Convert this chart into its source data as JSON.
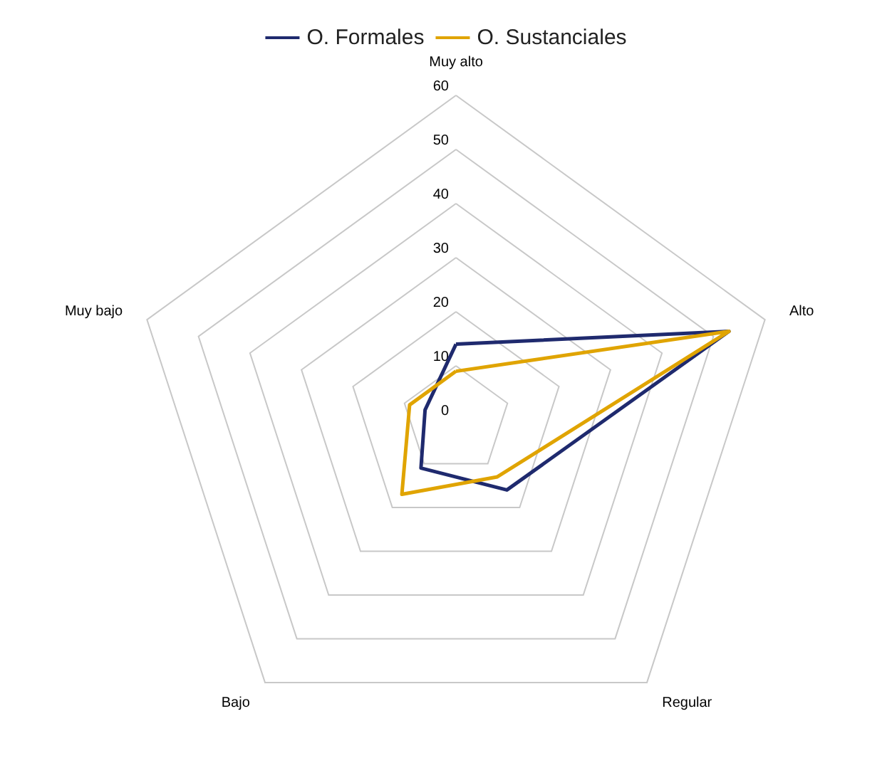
{
  "chart_data": {
    "type": "radar",
    "categories": [
      "Muy alto",
      "Alto",
      "Regular",
      "Bajo",
      "Muy bajo"
    ],
    "series": [
      {
        "name": "O. Formales",
        "color": "#1f2a6e",
        "values": [
          14,
          53,
          16,
          11,
          6
        ]
      },
      {
        "name": "O. Sustanciales",
        "color": "#e0a400",
        "values": [
          9,
          53,
          13,
          17,
          9
        ]
      }
    ],
    "ylim": [
      0,
      60
    ],
    "yticks": [
      0,
      10,
      20,
      30,
      40,
      50,
      60
    ],
    "grid": true,
    "legend": "top",
    "marker": "none",
    "line_style": "solid"
  }
}
